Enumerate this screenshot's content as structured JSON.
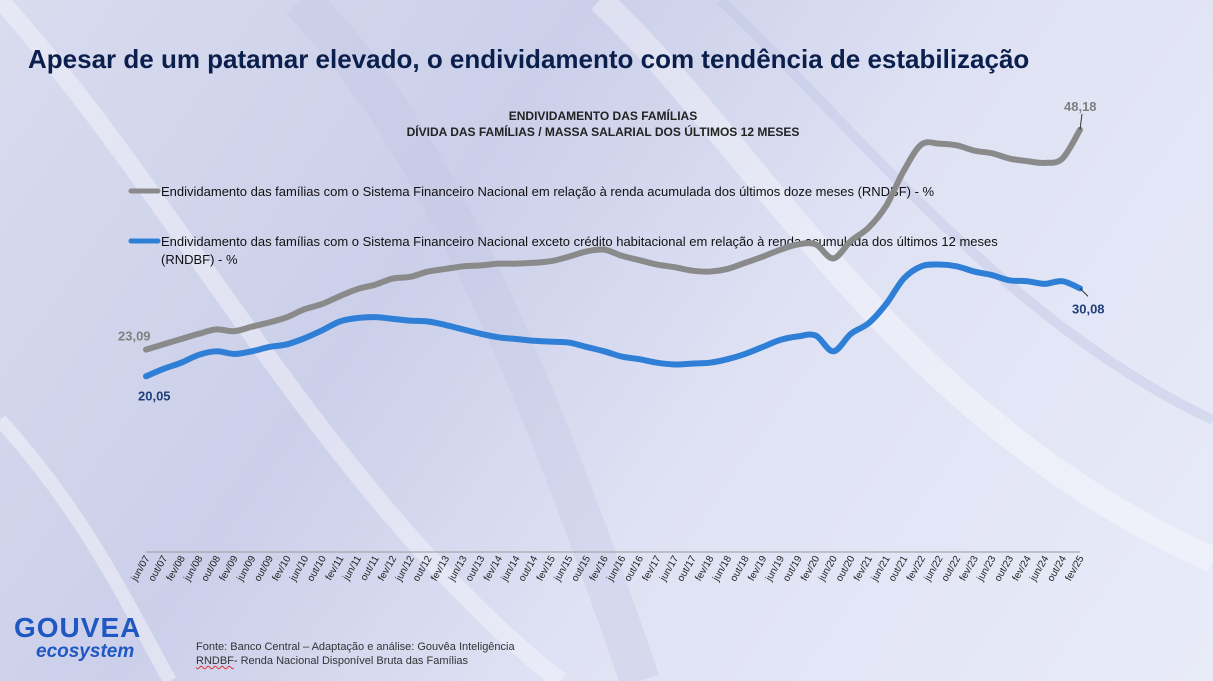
{
  "headline": "Apesar de um patamar elevado, o endividamento com tendência de estabilização",
  "footer": {
    "source": "Fonte: Banco Central – Adaptação e análise: Gouvêa Inteligência",
    "abbr": "RNDBF",
    "note": "- Renda Nacional Disponível Bruta das Famílias"
  },
  "logo": {
    "word": "GOUVEA",
    "sub": "ecosystem"
  },
  "colors": {
    "gray": "#8a8a8a",
    "blue": "#2f7fd6",
    "title": "#0b1f4d"
  },
  "chart_data": {
    "type": "line",
    "title": "ENDIVIDAMENTO DAS FAMÍLIAS",
    "subtitle": "DÍVIDA DAS FAMÍLIAS / MASSA SALARIAL DOS ÚLTIMOS 12 MESES",
    "ylim": [
      0,
      55
    ],
    "x_tick_labels": [
      "jun/07",
      "out/07",
      "fev/08",
      "jun/08",
      "out/08",
      "fev/09",
      "jun/09",
      "out/09",
      "fev/10",
      "jun/10",
      "out/10",
      "fev/11",
      "jun/11",
      "out/11",
      "fev/12",
      "jun/12",
      "out/12",
      "fev/13",
      "jun/13",
      "out/13",
      "fev/14",
      "jun/14",
      "out/14",
      "fev/15",
      "jun/15",
      "out/15",
      "fev/16",
      "jun/16",
      "out/16",
      "fev/17",
      "jun/17",
      "out/17",
      "fev/18",
      "jun/18",
      "out/18",
      "fev/19",
      "jun/19",
      "out/19",
      "fev/20",
      "jun/20",
      "out/20",
      "fev/21",
      "jun/21",
      "out/21",
      "fev/22",
      "jun/22",
      "out/22",
      "fev/23",
      "jun/23",
      "out/23",
      "fev/24",
      "jun/24",
      "out/24",
      "fev/25"
    ],
    "series": [
      {
        "name": "Endividamento das famílias com o Sistema Financeiro Nacional em relação à renda acumulada dos últimos doze meses (RNDBF) - %",
        "color": "#8a8a8a",
        "start_label": "23,09",
        "end_label": "48,18",
        "values": [
          23.09,
          23.7,
          24.3,
          24.9,
          25.4,
          25.2,
          25.7,
          26.2,
          26.8,
          27.7,
          28.3,
          29.2,
          30.0,
          30.5,
          31.2,
          31.4,
          32.0,
          32.3,
          32.6,
          32.7,
          32.9,
          32.9,
          33.0,
          33.2,
          33.7,
          34.3,
          34.5,
          33.8,
          33.3,
          32.8,
          32.5,
          32.1,
          32.0,
          32.3,
          33.0,
          33.7,
          34.5,
          35.1,
          35.1,
          33.5,
          35.5,
          37.0,
          39.5,
          43.5,
          46.5,
          46.6,
          46.4,
          45.8,
          45.5,
          44.9,
          44.6,
          44.4,
          44.9,
          48.18
        ]
      },
      {
        "name": "Endividamento das famílias com o Sistema Financeiro Nacional exceto crédito habitacional em relação à renda acumulada dos últimos 12 meses (RNDBF) - %",
        "color": "#2f7fd6",
        "start_label": "20,05",
        "end_label": "30,08",
        "values": [
          20.05,
          20.9,
          21.6,
          22.5,
          22.9,
          22.6,
          22.9,
          23.4,
          23.7,
          24.4,
          25.3,
          26.3,
          26.7,
          26.8,
          26.6,
          26.4,
          26.3,
          25.9,
          25.4,
          24.9,
          24.5,
          24.3,
          24.1,
          24.0,
          23.9,
          23.4,
          22.9,
          22.3,
          22.0,
          21.6,
          21.4,
          21.5,
          21.6,
          22.0,
          22.6,
          23.4,
          24.2,
          24.6,
          24.7,
          22.9,
          24.9,
          26.1,
          28.3,
          31.2,
          32.6,
          32.8,
          32.6,
          32.0,
          31.6,
          31.0,
          30.9,
          30.6,
          30.9,
          30.08
        ]
      }
    ]
  }
}
